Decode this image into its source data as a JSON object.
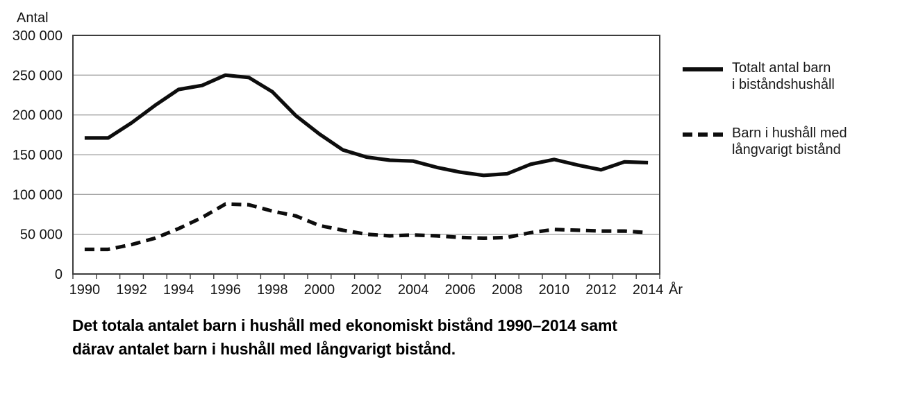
{
  "figure": {
    "y_axis_title": "Antal",
    "x_axis_title": "År"
  },
  "legend": {
    "items": [
      {
        "name": "Totalt antal barn i biståndshushåll",
        "lines": [
          "Totalt antal barn",
          "i biståndshushåll"
        ],
        "style": "solid"
      },
      {
        "name": "Barn i hushåll med långvarigt bistånd",
        "lines": [
          "Barn i hushåll med",
          "långvarigt bistånd"
        ],
        "style": "dashed"
      }
    ]
  },
  "caption": {
    "lines": [
      "Det totala antalet barn i hushåll med ekonomiskt bistånd 1990–2014 samt",
      "därav antalet barn i hushåll med långvarigt bistånd."
    ]
  },
  "colors": {
    "line": "#0d0d0d",
    "grid": "#a3a3a3",
    "axis_box": "#3c3c3c",
    "text": "#141414",
    "background": "#ffffff"
  },
  "chart_data": {
    "type": "line",
    "title": "",
    "xlabel": "År",
    "ylabel": "Antal",
    "x": [
      1990,
      1991,
      1992,
      1993,
      1994,
      1995,
      1996,
      1997,
      1998,
      1999,
      2000,
      2001,
      2002,
      2003,
      2004,
      2005,
      2006,
      2007,
      2008,
      2009,
      2010,
      2011,
      2012,
      2013,
      2014
    ],
    "x_tick_labels": [
      "1990",
      "1992",
      "1994",
      "1996",
      "1998",
      "2000",
      "2002",
      "2004",
      "2006",
      "2008",
      "2010",
      "2012",
      "2014"
    ],
    "y_ticks": [
      0,
      50000,
      100000,
      150000,
      200000,
      250000,
      300000
    ],
    "y_tick_labels": [
      "0",
      "50 000",
      "100 000",
      "150 000",
      "200 000",
      "250 000",
      "300 000"
    ],
    "ylim": [
      0,
      300000
    ],
    "grid": "horizontal",
    "legend_position": "right",
    "series": [
      {
        "name": "Totalt antal barn i biståndshushåll",
        "line_style": "solid",
        "values": [
          171000,
          171000,
          190000,
          212000,
          232000,
          237000,
          250000,
          247000,
          229000,
          199000,
          176000,
          156000,
          147000,
          143000,
          142000,
          134000,
          128000,
          124000,
          126000,
          138000,
          144000,
          137000,
          131000,
          141000,
          140000
        ]
      },
      {
        "name": "Barn i hushåll med långvarigt bistånd",
        "line_style": "dashed",
        "values": [
          31000,
          31000,
          37000,
          45000,
          57000,
          71000,
          88000,
          87000,
          79000,
          73000,
          61000,
          55000,
          50000,
          48000,
          49000,
          48000,
          46000,
          45000,
          46000,
          52000,
          56000,
          55000,
          54000,
          54000,
          52000
        ]
      }
    ]
  }
}
